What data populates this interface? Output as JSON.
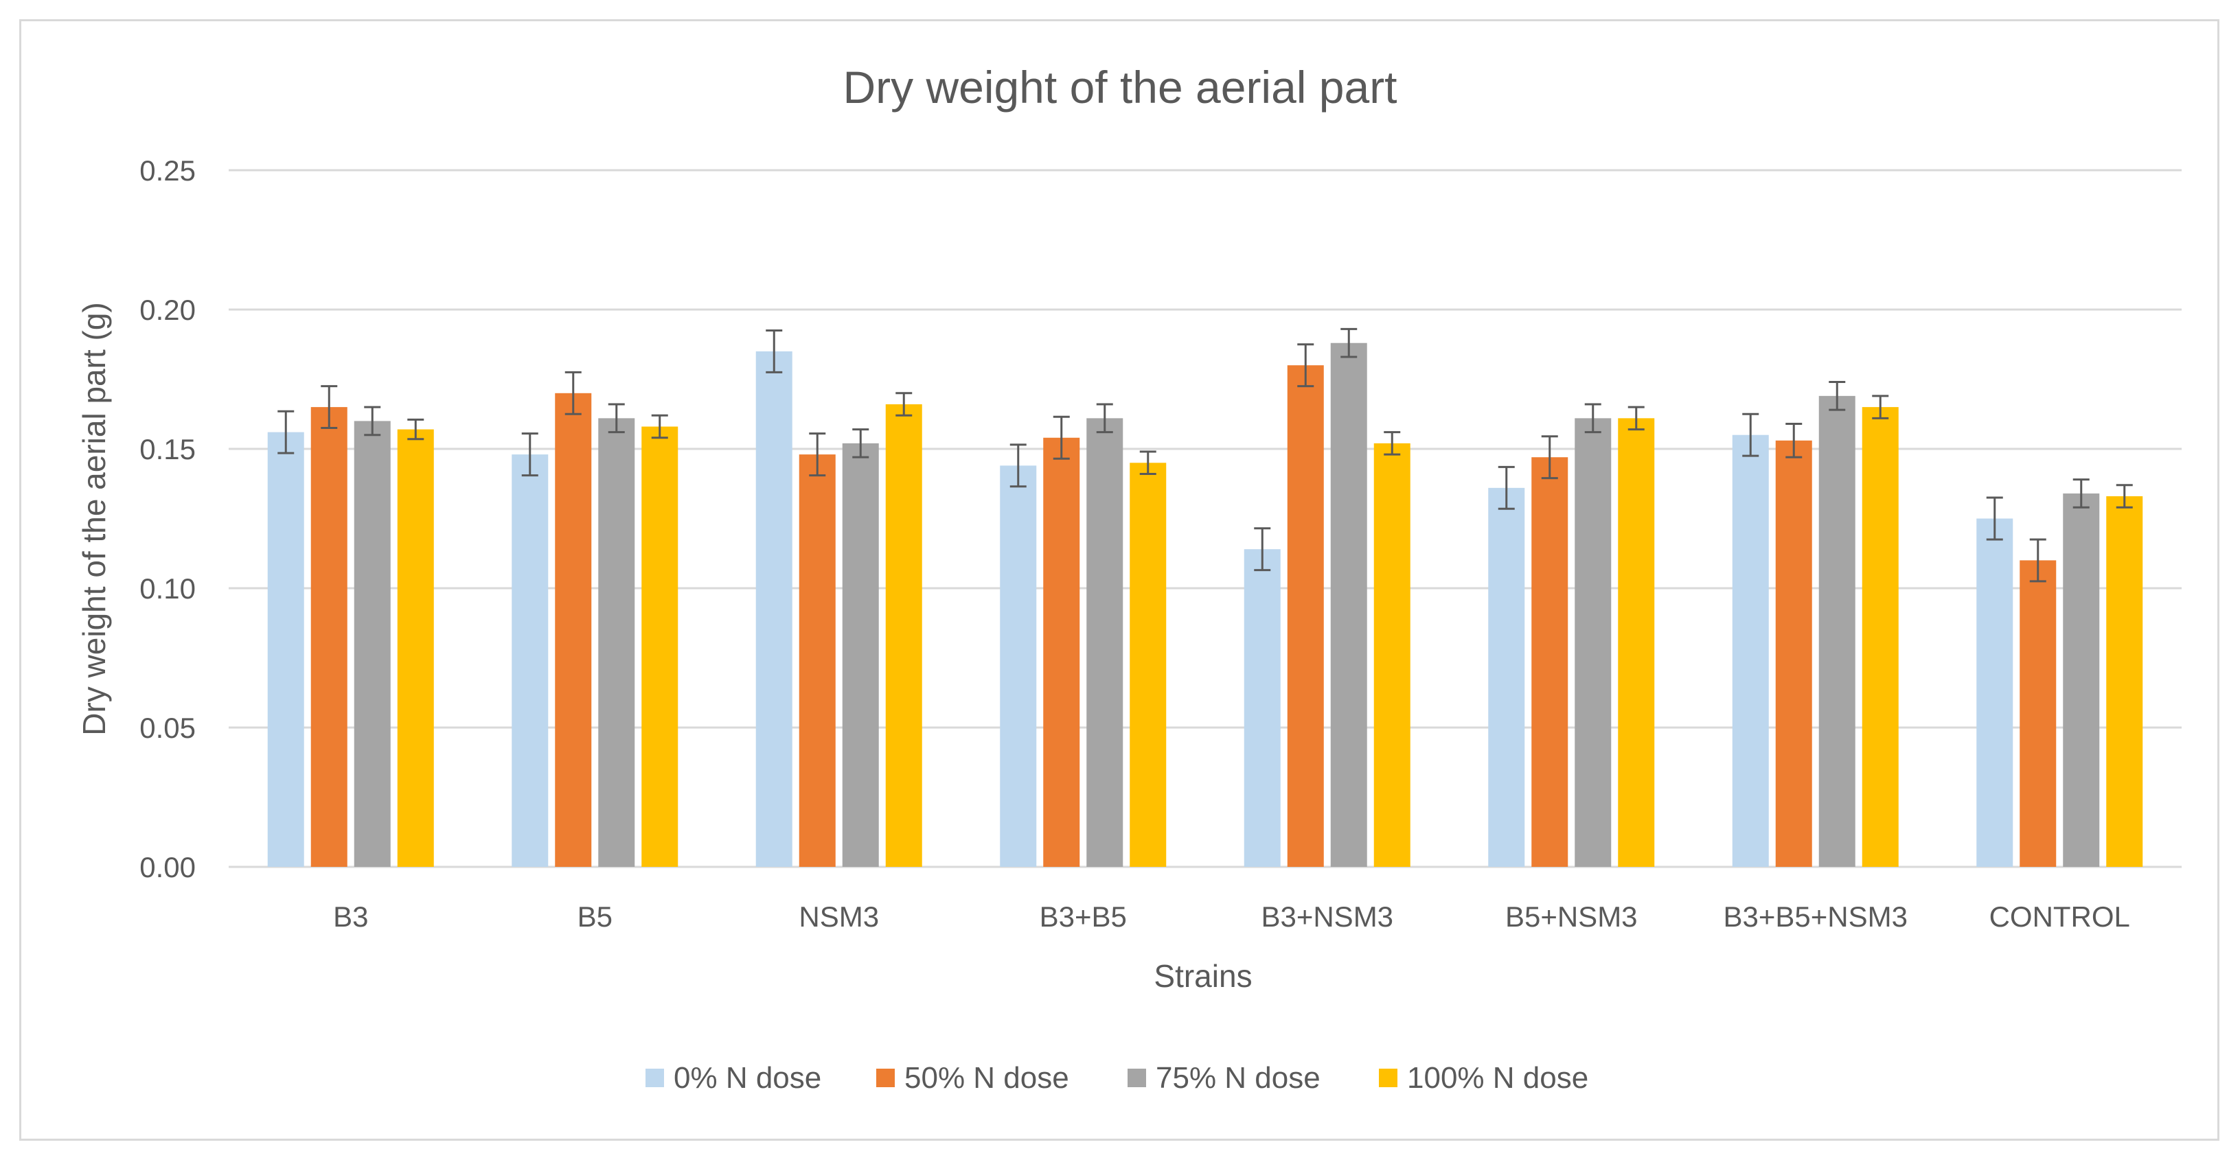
{
  "chart_data": {
    "type": "bar",
    "title": "Dry weight of the aerial part",
    "xlabel": "Strains",
    "ylabel": "Dry weight of the aerial part (g)",
    "ylim": [
      0,
      0.25
    ],
    "yticks": [
      "0.00",
      "0.05",
      "0.10",
      "0.15",
      "0.20",
      "0.25"
    ],
    "ytick_values": [
      0,
      0.05,
      0.1,
      0.15,
      0.2,
      0.25
    ],
    "grid": true,
    "legend_position": "bottom",
    "categories": [
      "B3",
      "B5",
      "NSM3",
      "B3+B5",
      "B3+NSM3",
      "B5+NSM3",
      "B3+B5+NSM3",
      "CONTROL"
    ],
    "series": [
      {
        "name": "0% N dose",
        "color": "#BDD7EE",
        "values": [
          0.156,
          0.148,
          0.185,
          0.144,
          0.114,
          0.136,
          0.155,
          0.125
        ],
        "errors": [
          0.0075,
          0.0075,
          0.0075,
          0.0075,
          0.0075,
          0.0075,
          0.0075,
          0.0075
        ]
      },
      {
        "name": "50% N dose",
        "color": "#ED7D31",
        "values": [
          0.165,
          0.17,
          0.148,
          0.154,
          0.18,
          0.147,
          0.153,
          0.11
        ],
        "errors": [
          0.0075,
          0.0075,
          0.0075,
          0.0075,
          0.0075,
          0.0075,
          0.006,
          0.0075
        ]
      },
      {
        "name": "75% N dose",
        "color": "#A5A5A5",
        "values": [
          0.16,
          0.161,
          0.152,
          0.161,
          0.188,
          0.161,
          0.169,
          0.134
        ],
        "errors": [
          0.005,
          0.005,
          0.005,
          0.005,
          0.005,
          0.005,
          0.005,
          0.005
        ]
      },
      {
        "name": "100% N dose",
        "color": "#FFC000",
        "values": [
          0.157,
          0.158,
          0.166,
          0.145,
          0.152,
          0.161,
          0.165,
          0.133
        ],
        "errors": [
          0.0035,
          0.004,
          0.004,
          0.004,
          0.004,
          0.004,
          0.004,
          0.004
        ]
      }
    ]
  }
}
